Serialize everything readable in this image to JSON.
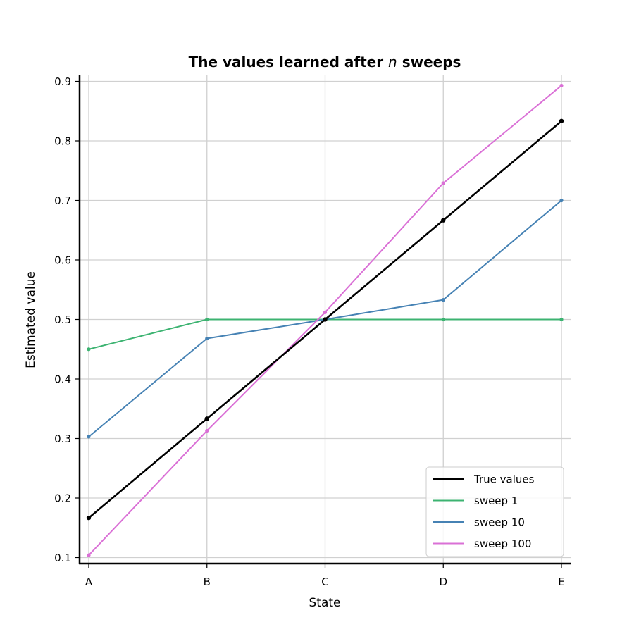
{
  "chart_data": {
    "type": "line",
    "title": {
      "prefix": "The values learned after ",
      "variable": "n",
      "suffix": " sweeps"
    },
    "xlabel": "State",
    "ylabel": "Estimated value",
    "categories": [
      "A",
      "B",
      "C",
      "D",
      "E"
    ],
    "ylim": [
      0.09,
      0.91
    ],
    "yticks": [
      "0.1",
      "0.2",
      "0.3",
      "0.4",
      "0.5",
      "0.6",
      "0.7",
      "0.8",
      "0.9"
    ],
    "grid": true,
    "legend_position": "lower-right",
    "series": [
      {
        "name": "True values",
        "color": "#000000",
        "values": [
          0.1667,
          0.3333,
          0.5,
          0.6667,
          0.8333
        ]
      },
      {
        "name": "sweep 1",
        "color": "#3cb371",
        "values": [
          0.45,
          0.5,
          0.5,
          0.5,
          0.5
        ]
      },
      {
        "name": "sweep 10",
        "color": "#4682b4",
        "values": [
          0.303,
          0.468,
          0.5,
          0.533,
          0.7
        ]
      },
      {
        "name": "sweep 100",
        "color": "#da70d6",
        "values": [
          0.104,
          0.313,
          0.512,
          0.729,
          0.893
        ]
      }
    ]
  }
}
